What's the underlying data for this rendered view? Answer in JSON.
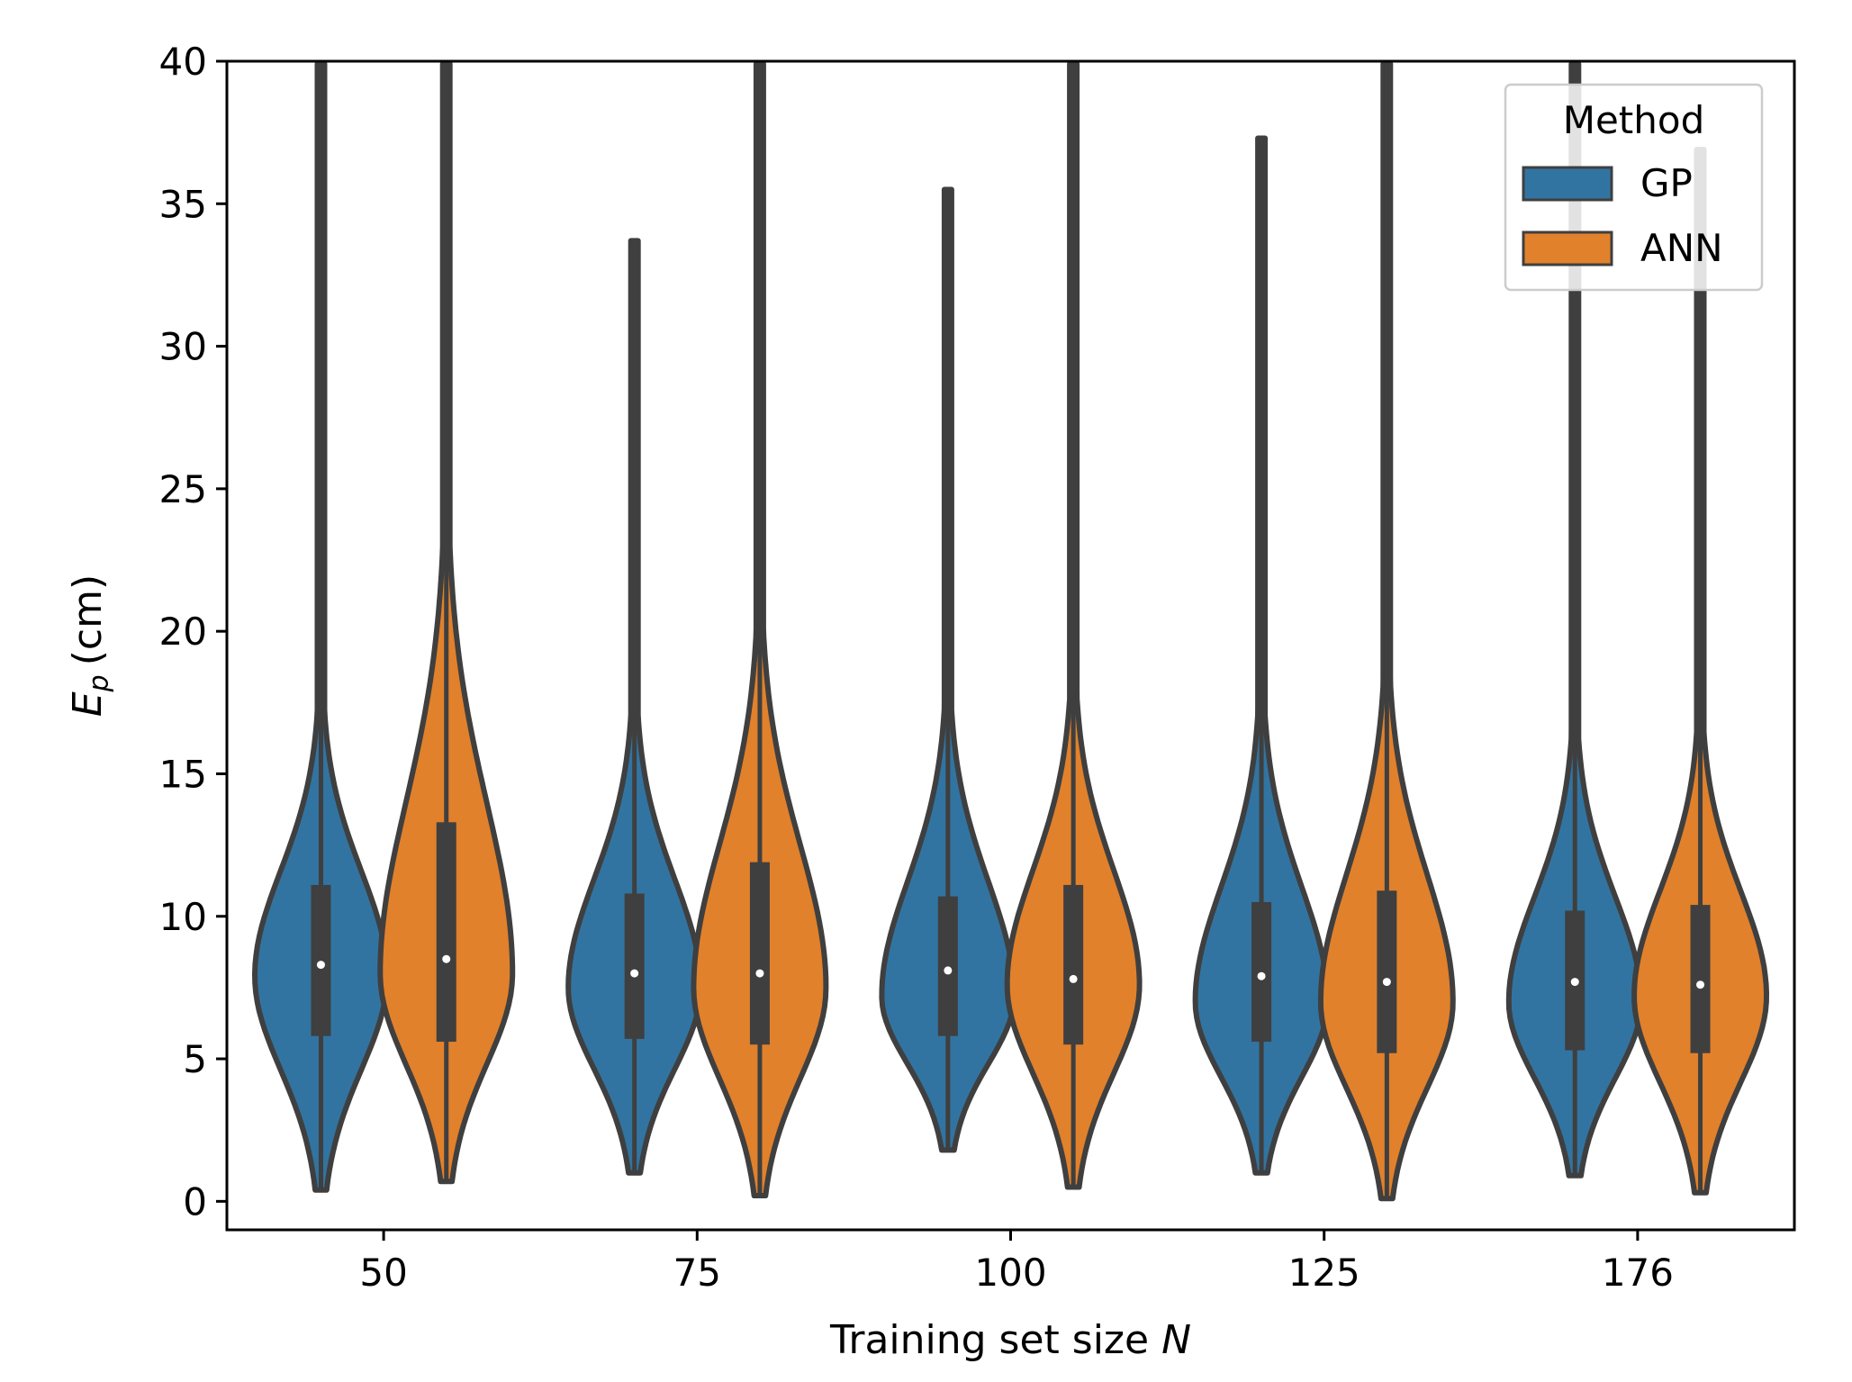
{
  "chart_data": {
    "type": "violin",
    "title": "",
    "xlabel": "Training set size",
    "xlabel_var": "N",
    "ylabel_var": "E",
    "ylabel_sub": "p",
    "ylabel_unit": "(cm)",
    "ylim": [
      -1,
      40
    ],
    "yticks": [
      0,
      5,
      10,
      15,
      20,
      25,
      30,
      35,
      40
    ],
    "categories": [
      "50",
      "75",
      "100",
      "125",
      "176"
    ],
    "legend": {
      "title": "Method",
      "position": "top-right",
      "entries": [
        {
          "label": "GP",
          "color": "#3274a1"
        },
        {
          "label": "ANN",
          "color": "#e1812c"
        }
      ]
    },
    "series": [
      {
        "name": "GP",
        "color": "#3274a1",
        "violins": [
          {
            "category": "50",
            "min": 0.4,
            "max": 40,
            "q1": 5.8,
            "median": 8.3,
            "q3": 11.1,
            "mode": 7.9
          },
          {
            "category": "75",
            "min": 1.0,
            "max": 33.7,
            "q1": 5.7,
            "median": 8.0,
            "q3": 10.8,
            "mode": 7.5
          },
          {
            "category": "100",
            "min": 1.8,
            "max": 35.5,
            "q1": 5.8,
            "median": 8.1,
            "q3": 10.7,
            "mode": 7.2
          },
          {
            "category": "125",
            "min": 1.0,
            "max": 37.3,
            "q1": 5.6,
            "median": 7.9,
            "q3": 10.5,
            "mode": 7.0
          },
          {
            "category": "176",
            "min": 0.9,
            "max": 40,
            "q1": 5.3,
            "median": 7.7,
            "q3": 10.2,
            "mode": 7.0
          }
        ]
      },
      {
        "name": "ANN",
        "color": "#e1812c",
        "violins": [
          {
            "category": "50",
            "min": 0.7,
            "max": 40,
            "q1": 5.6,
            "median": 8.5,
            "q3": 13.3,
            "mode": 8.0
          },
          {
            "category": "75",
            "min": 0.2,
            "max": 40,
            "q1": 5.5,
            "median": 8.0,
            "q3": 11.9,
            "mode": 7.5
          },
          {
            "category": "100",
            "min": 0.5,
            "max": 40,
            "q1": 5.5,
            "median": 7.8,
            "q3": 11.1,
            "mode": 7.6
          },
          {
            "category": "125",
            "min": 0.1,
            "max": 40,
            "q1": 5.2,
            "median": 7.7,
            "q3": 10.9,
            "mode": 7.0
          },
          {
            "category": "176",
            "min": 0.3,
            "max": 36.9,
            "q1": 5.2,
            "median": 7.6,
            "q3": 10.4,
            "mode": 7.2
          }
        ]
      }
    ]
  }
}
